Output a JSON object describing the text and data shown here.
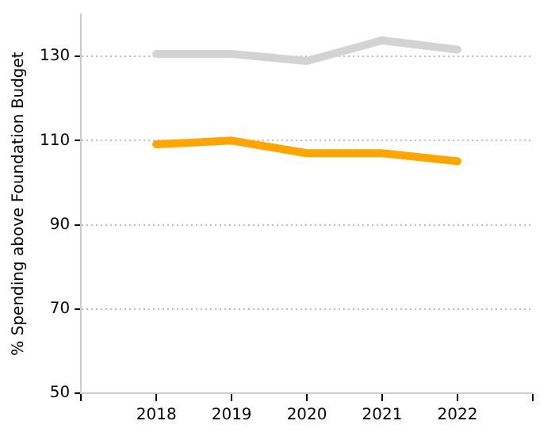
{
  "chart_data": {
    "type": "line",
    "ylabel": "% Spending above Foundation Budget",
    "x": [
      2018,
      2019,
      2020,
      2021,
      2022
    ],
    "series": [
      {
        "color": "#d3d3d3",
        "values": [
          130.6,
          130.6,
          128.9,
          133.8,
          131.6
        ]
      },
      {
        "color": "#ffa500",
        "values": [
          109.1,
          110,
          107,
          107,
          105.1
        ]
      }
    ],
    "xlim": [
      2017,
      2023
    ],
    "xticks": [
      {
        "value": 2017,
        "label": null
      },
      2018,
      2019,
      2020,
      2021,
      2022,
      {
        "value": 2023,
        "label": null
      }
    ],
    "ylim": [
      50,
      140
    ],
    "yticks": [
      50,
      70,
      90,
      110,
      130
    ],
    "grid": "y",
    "legend": false,
    "marker": "none",
    "line_style": "solid"
  }
}
